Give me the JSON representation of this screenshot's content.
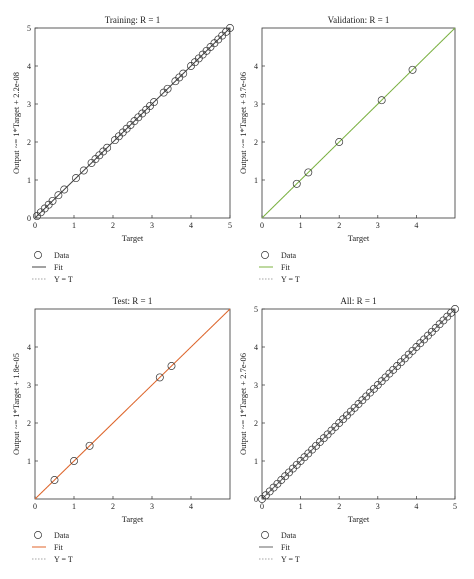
{
  "chart_data": [
    {
      "type": "scatter",
      "title": "Training: R = 1",
      "xlabel": "Target",
      "ylabel": "Output ~= 1*Target + 2.2e-08",
      "xlim": [
        0,
        5
      ],
      "ylim": [
        0,
        5
      ],
      "xticks": [
        "0",
        "1",
        "2",
        "3",
        "4",
        "5"
      ],
      "yticks": [
        "0",
        "1",
        "2",
        "3",
        "4",
        "5"
      ],
      "fit_color": "#444444",
      "x": [
        0.05,
        0.15,
        0.25,
        0.35,
        0.45,
        0.6,
        0.75,
        1.05,
        1.25,
        1.45,
        1.55,
        1.65,
        1.75,
        1.85,
        2.05,
        2.15,
        2.25,
        2.35,
        2.45,
        2.55,
        2.65,
        2.75,
        2.85,
        2.95,
        3.05,
        3.3,
        3.4,
        3.6,
        3.7,
        3.8,
        4.0,
        4.1,
        4.2,
        4.3,
        4.4,
        4.5,
        4.6,
        4.7,
        4.8,
        4.9,
        5.0
      ],
      "y": [
        0.05,
        0.15,
        0.25,
        0.35,
        0.45,
        0.6,
        0.75,
        1.05,
        1.25,
        1.45,
        1.55,
        1.65,
        1.75,
        1.85,
        2.05,
        2.15,
        2.25,
        2.35,
        2.45,
        2.55,
        2.65,
        2.75,
        2.85,
        2.95,
        3.05,
        3.3,
        3.4,
        3.6,
        3.7,
        3.8,
        4.0,
        4.1,
        4.2,
        4.3,
        4.4,
        4.5,
        4.6,
        4.7,
        4.8,
        4.9,
        5.0
      ],
      "legend": [
        "Data",
        "Fit",
        "Y = T"
      ]
    },
    {
      "type": "scatter",
      "title": "Validation: R = 1",
      "xlabel": "Target",
      "ylabel": "Output ~= 1*Target + 9.7e-06",
      "xlim": [
        0,
        5
      ],
      "ylim": [
        0,
        5
      ],
      "xticks": [
        "0",
        "1",
        "2",
        "3",
        "4"
      ],
      "yticks": [
        "1",
        "2",
        "3",
        "4"
      ],
      "fit_color": "#7cb342",
      "x": [
        0.9,
        1.2,
        2.0,
        3.1,
        3.9
      ],
      "y": [
        0.9,
        1.2,
        2.0,
        3.1,
        3.9
      ],
      "legend": [
        "Data",
        "Fit",
        "Y = T"
      ]
    },
    {
      "type": "scatter",
      "title": "Test: R = 1",
      "xlabel": "Target",
      "ylabel": "Output ~= 1*Target + 1.8e-05",
      "xlim": [
        0,
        5
      ],
      "ylim": [
        0,
        5
      ],
      "xticks": [
        "0",
        "1",
        "2",
        "3",
        "4"
      ],
      "yticks": [
        "1",
        "2",
        "3",
        "4"
      ],
      "fit_color": "#e0662b",
      "x": [
        0.5,
        1.0,
        1.4,
        3.2,
        3.5
      ],
      "y": [
        0.5,
        1.0,
        1.4,
        3.2,
        3.5
      ],
      "legend": [
        "Data",
        "Fit",
        "Y = T"
      ]
    },
    {
      "type": "scatter",
      "title": "All: R = 1",
      "xlabel": "Target",
      "ylabel": "Output ~= 1*Target + 2.7e-06",
      "xlim": [
        0,
        5
      ],
      "ylim": [
        0,
        5
      ],
      "xticks": [
        "0",
        "1",
        "2",
        "3",
        "4",
        "5"
      ],
      "yticks": [
        "0",
        "1",
        "2",
        "3",
        "4",
        "5"
      ],
      "fit_color": "#666666",
      "x": [
        0.0,
        0.1,
        0.2,
        0.3,
        0.4,
        0.5,
        0.6,
        0.7,
        0.8,
        0.9,
        1.0,
        1.1,
        1.2,
        1.3,
        1.4,
        1.5,
        1.6,
        1.7,
        1.8,
        1.9,
        2.0,
        2.1,
        2.2,
        2.3,
        2.4,
        2.5,
        2.6,
        2.7,
        2.8,
        2.9,
        3.0,
        3.1,
        3.2,
        3.3,
        3.4,
        3.5,
        3.6,
        3.7,
        3.8,
        3.9,
        4.0,
        4.1,
        4.2,
        4.3,
        4.4,
        4.5,
        4.6,
        4.7,
        4.8,
        4.9,
        5.0
      ],
      "y": [
        0.0,
        0.1,
        0.2,
        0.3,
        0.4,
        0.5,
        0.6,
        0.7,
        0.8,
        0.9,
        1.0,
        1.1,
        1.2,
        1.3,
        1.4,
        1.5,
        1.6,
        1.7,
        1.8,
        1.9,
        2.0,
        2.1,
        2.2,
        2.3,
        2.4,
        2.5,
        2.6,
        2.7,
        2.8,
        2.9,
        3.0,
        3.1,
        3.2,
        3.3,
        3.4,
        3.5,
        3.6,
        3.7,
        3.8,
        3.9,
        4.0,
        4.1,
        4.2,
        4.3,
        4.4,
        4.5,
        4.6,
        4.7,
        4.8,
        4.9,
        5.0
      ],
      "legend": [
        "Data",
        "Fit",
        "Y = T"
      ]
    }
  ]
}
